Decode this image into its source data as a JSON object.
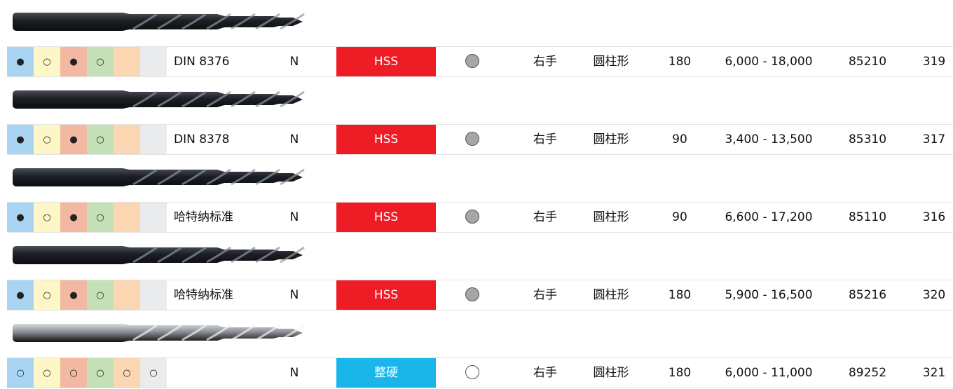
{
  "rows": [
    {
      "symbols": [
        "●",
        "○",
        "●",
        "○",
        null,
        null
      ],
      "standard": "DIN 8376",
      "type": "N",
      "material": "HSS",
      "material_color": "#ee1c25",
      "circle_color": "#a6a6a6",
      "direction": "右手",
      "shank": "圆柱形",
      "angle": 180,
      "rpm": "6,000 - 18,000",
      "code": 85210,
      "page": 319
    },
    {
      "symbols": [
        "●",
        "○",
        "●",
        "○",
        null,
        null
      ],
      "standard": "DIN 8378",
      "type": "N",
      "material": "HSS",
      "material_color": "#ee1c25",
      "circle_color": "#a6a6a6",
      "direction": "右手",
      "shank": "圆柱形",
      "angle": 90,
      "rpm": "3,400 - 13,500",
      "code": 85310,
      "page": 317
    },
    {
      "symbols": [
        "●",
        "○",
        "●",
        "○",
        null,
        null
      ],
      "standard": "哈特纳标准",
      "type": "N",
      "material": "HSS",
      "material_color": "#ee1c25",
      "circle_color": "#a6a6a6",
      "direction": "右手",
      "shank": "圆柱形",
      "angle": 90,
      "rpm": "6,600 - 17,200",
      "code": 85110,
      "page": 316
    },
    {
      "symbols": [
        "●",
        "○",
        "●",
        "○",
        null,
        null
      ],
      "standard": "哈特纳标准",
      "type": "N",
      "material": "HSS",
      "material_color": "#ee1c25",
      "circle_color": "#a6a6a6",
      "direction": "右手",
      "shank": "圆柱形",
      "angle": 180,
      "rpm": "5,900 - 16,500",
      "code": 85216,
      "page": 320
    },
    {
      "symbols": [
        "○",
        "○",
        "○",
        "○",
        "○",
        "○"
      ],
      "standard": null,
      "type": "N",
      "material": "整硬",
      "material_color": "#1ab6ea",
      "circle_color": "#ffffff",
      "direction": "右手",
      "shank": "圆柱形",
      "angle": 180,
      "rpm": "6,000 - 11,000",
      "code": 89252,
      "page": 321
    }
  ]
}
